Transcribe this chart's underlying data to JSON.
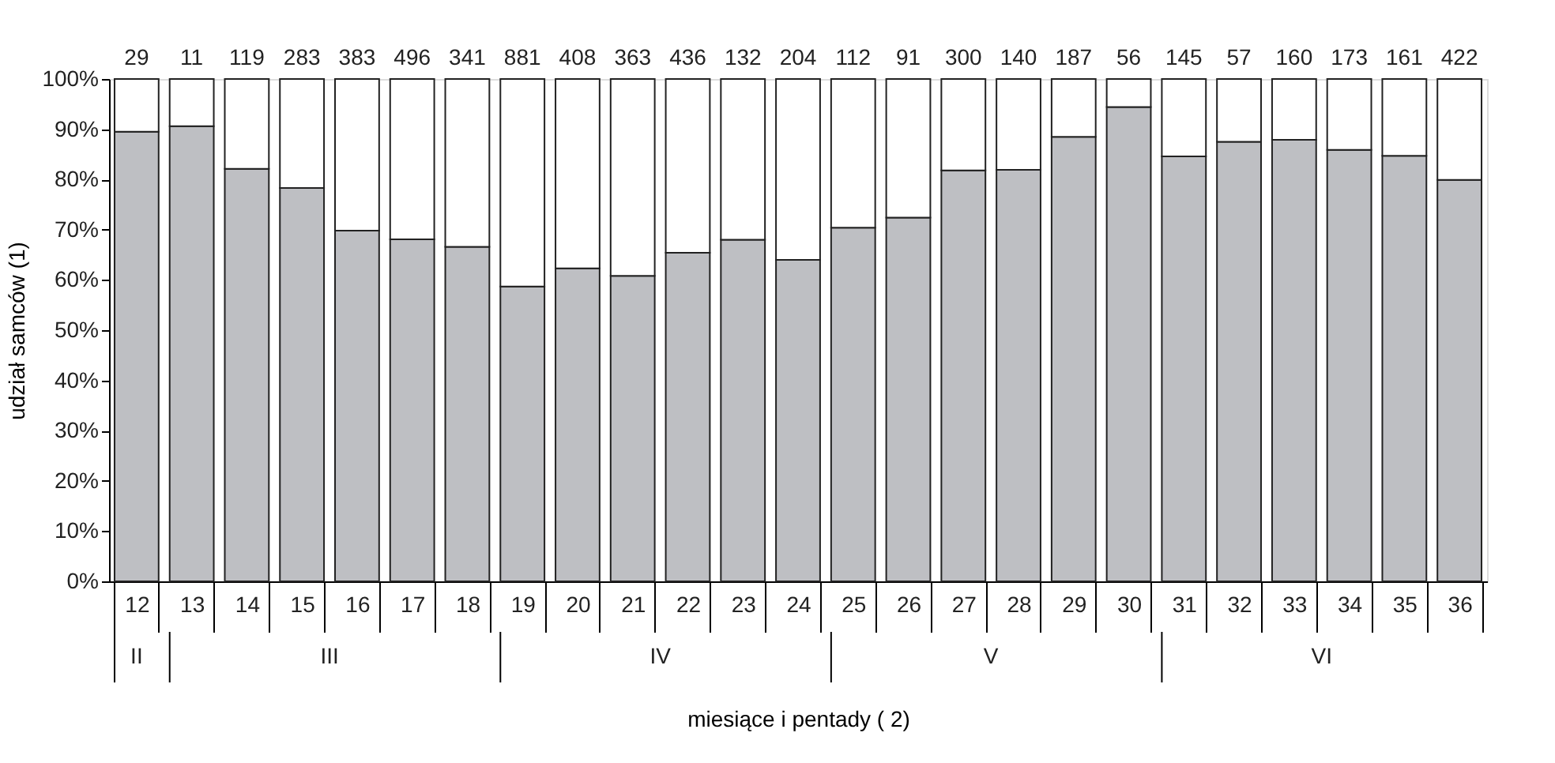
{
  "chart_data": {
    "type": "bar",
    "stacked": true,
    "ylabel": "udział samców (1)",
    "xlabel": "miesiące i pentady ( 2)",
    "categories": [
      "12",
      "13",
      "14",
      "15",
      "16",
      "17",
      "18",
      "19",
      "20",
      "21",
      "22",
      "23",
      "24",
      "25",
      "26",
      "27",
      "28",
      "29",
      "30",
      "31",
      "32",
      "33",
      "34",
      "35",
      "36"
    ],
    "series": [
      {
        "color": "#bebfc3",
        "values": [
          89.5,
          90.6,
          82.1,
          78.3,
          69.8,
          68.1,
          66.6,
          58.7,
          62.3,
          60.8,
          65.4,
          68.0,
          64.0,
          70.4,
          72.4,
          81.8,
          81.9,
          88.5,
          94.4,
          84.6,
          87.5,
          87.9,
          85.9,
          84.7,
          79.9
        ]
      },
      {
        "color": "#ffffff",
        "values": [
          10.5,
          9.4,
          17.9,
          21.7,
          30.2,
          31.9,
          33.4,
          41.3,
          37.7,
          39.2,
          34.6,
          32.0,
          36.0,
          29.6,
          27.6,
          18.2,
          18.1,
          11.5,
          5.6,
          15.4,
          12.5,
          12.1,
          14.1,
          15.3,
          20.1
        ]
      }
    ],
    "ylim": [
      0,
      100
    ],
    "yticks": [
      {
        "value": 0,
        "label": "0%"
      },
      {
        "value": 10,
        "label": "10%"
      },
      {
        "value": 20,
        "label": "20%"
      },
      {
        "value": 30,
        "label": "30%"
      },
      {
        "value": 40,
        "label": "40%"
      },
      {
        "value": 50,
        "label": "50%"
      },
      {
        "value": 60,
        "label": "60%"
      },
      {
        "value": 70,
        "label": "70%"
      },
      {
        "value": 80,
        "label": "80%"
      },
      {
        "value": 90,
        "label": "90%"
      },
      {
        "value": 100,
        "label": "100%"
      }
    ],
    "annotations": [
      {
        "text": "29",
        "x": "12",
        "y": 100
      },
      {
        "text": "11",
        "x": "13",
        "y": 100
      },
      {
        "text": "119",
        "x": "14",
        "y": 100
      },
      {
        "text": "283",
        "x": "15",
        "y": 100
      },
      {
        "text": "383",
        "x": "16",
        "y": 100
      },
      {
        "text": "496",
        "x": "17",
        "y": 100
      },
      {
        "text": "341",
        "x": "18",
        "y": 100
      },
      {
        "text": "881",
        "x": "19",
        "y": 100
      },
      {
        "text": "408",
        "x": "20",
        "y": 100
      },
      {
        "text": "363",
        "x": "21",
        "y": 100
      },
      {
        "text": "436",
        "x": "22",
        "y": 100
      },
      {
        "text": "132",
        "x": "23",
        "y": 100
      },
      {
        "text": "204",
        "x": "24",
        "y": 100
      },
      {
        "text": "112",
        "x": "25",
        "y": 100
      },
      {
        "text": "91",
        "x": "26",
        "y": 100
      },
      {
        "text": "300",
        "x": "27",
        "y": 100
      },
      {
        "text": "140",
        "x": "28",
        "y": 100
      },
      {
        "text": "187",
        "x": "29",
        "y": 100
      },
      {
        "text": "56",
        "x": "30",
        "y": 100
      },
      {
        "text": "145",
        "x": "31",
        "y": 100
      },
      {
        "text": "57",
        "x": "32",
        "y": 100
      },
      {
        "text": "160",
        "x": "33",
        "y": 100
      },
      {
        "text": "173",
        "x": "34",
        "y": 100
      },
      {
        "text": "161",
        "x": "35",
        "y": 100
      },
      {
        "text": "422",
        "x": "36",
        "y": 100
      },
      "II",
      "III",
      "IV",
      "V",
      "VI"
    ],
    "grid": false,
    "legend": false
  }
}
